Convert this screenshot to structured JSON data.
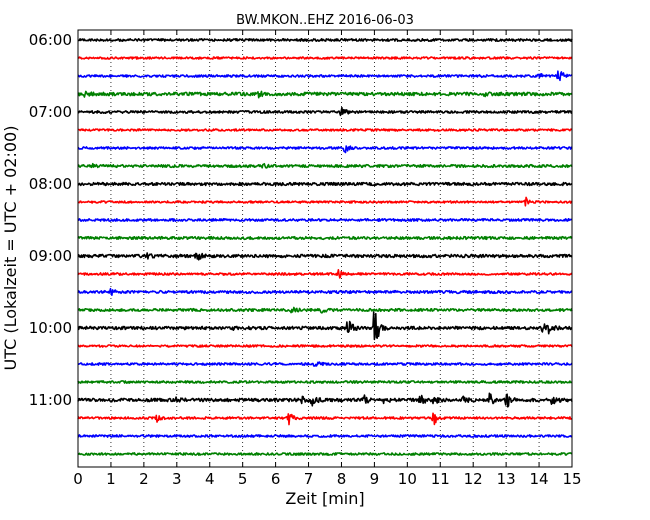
{
  "chart_data": {
    "type": "line",
    "title": "BW.MKON..EHZ 2016-06-03",
    "xlabel": "Zeit  [min]",
    "ylabel": "UTC (Lokalzeit = UTC + 02:00)",
    "xlim": [
      0,
      15
    ],
    "x_ticks": [
      "0",
      "1",
      "2",
      "3",
      "4",
      "5",
      "6",
      "7",
      "8",
      "9",
      "10",
      "11",
      "12",
      "13",
      "14",
      "15"
    ],
    "y_ticks": [
      "06:00",
      "07:00",
      "08:00",
      "09:00",
      "10:00",
      "11:00"
    ],
    "grid": "vertical dotted",
    "colors": [
      "#000000",
      "#ff0000",
      "#0000ff",
      "#008000"
    ],
    "traces": [
      {
        "label": "06:00",
        "color": "#000000",
        "noise": 1.2,
        "events": []
      },
      {
        "label": "06:15",
        "color": "#ff0000",
        "noise": 1.0,
        "events": []
      },
      {
        "label": "06:30",
        "color": "#0000ff",
        "noise": 1.1,
        "events": [
          {
            "t": 14.6,
            "amp": 8
          },
          {
            "t": 14.0,
            "amp": 2.5
          },
          {
            "t": 12.2,
            "amp": 2
          }
        ]
      },
      {
        "label": "06:45",
        "color": "#008000",
        "noise": 1.6,
        "events": [
          {
            "t": 5.5,
            "amp": 3
          },
          {
            "t": 0.2,
            "amp": 2
          },
          {
            "t": 12.3,
            "amp": 2
          }
        ]
      },
      {
        "label": "07:00",
        "color": "#000000",
        "noise": 1.2,
        "events": [
          {
            "t": 8.0,
            "amp": 5
          }
        ]
      },
      {
        "label": "07:15",
        "color": "#ff0000",
        "noise": 1.0,
        "events": []
      },
      {
        "label": "07:30",
        "color": "#0000ff",
        "noise": 1.1,
        "events": [
          {
            "t": 8.1,
            "amp": 5
          }
        ]
      },
      {
        "label": "07:45",
        "color": "#008000",
        "noise": 1.3,
        "events": [
          {
            "t": 0.4,
            "amp": 2
          },
          {
            "t": 5.6,
            "amp": 2
          }
        ]
      },
      {
        "label": "08:00",
        "color": "#000000",
        "noise": 1.4,
        "events": []
      },
      {
        "label": "08:15",
        "color": "#ff0000",
        "noise": 1.0,
        "events": [
          {
            "t": 13.6,
            "amp": 4
          }
        ]
      },
      {
        "label": "08:30",
        "color": "#0000ff",
        "noise": 1.2,
        "events": []
      },
      {
        "label": "08:45",
        "color": "#008000",
        "noise": 1.3,
        "events": []
      },
      {
        "label": "09:00",
        "color": "#000000",
        "noise": 1.5,
        "events": [
          {
            "t": 3.6,
            "amp": 5
          },
          {
            "t": 2.1,
            "amp": 2
          }
        ]
      },
      {
        "label": "09:15",
        "color": "#ff0000",
        "noise": 1.1,
        "events": [
          {
            "t": 7.9,
            "amp": 5
          }
        ]
      },
      {
        "label": "09:30",
        "color": "#0000ff",
        "noise": 1.3,
        "events": [
          {
            "t": 1.0,
            "amp": 3
          }
        ]
      },
      {
        "label": "09:45",
        "color": "#008000",
        "noise": 1.3,
        "events": [
          {
            "t": 6.5,
            "amp": 3
          },
          {
            "t": 7.4,
            "amp": 2
          }
        ]
      },
      {
        "label": "10:00",
        "color": "#000000",
        "noise": 1.5,
        "events": [
          {
            "t": 8.2,
            "amp": 11
          },
          {
            "t": 9.0,
            "amp": 26
          },
          {
            "t": 14.1,
            "amp": 5
          },
          {
            "t": 14.3,
            "amp": 4
          },
          {
            "t": 4.7,
            "amp": 2
          }
        ]
      },
      {
        "label": "10:15",
        "color": "#ff0000",
        "noise": 1.0,
        "events": []
      },
      {
        "label": "10:30",
        "color": "#0000ff",
        "noise": 1.1,
        "events": [
          {
            "t": 7.2,
            "amp": 3
          }
        ]
      },
      {
        "label": "10:45",
        "color": "#008000",
        "noise": 1.1,
        "events": []
      },
      {
        "label": "11:00",
        "color": "#000000",
        "noise": 1.6,
        "events": [
          {
            "t": 7.1,
            "amp": 6
          },
          {
            "t": 6.8,
            "amp": 3
          },
          {
            "t": 8.7,
            "amp": 4
          },
          {
            "t": 9.3,
            "amp": 3
          },
          {
            "t": 10.4,
            "amp": 6
          },
          {
            "t": 10.8,
            "amp": 5
          },
          {
            "t": 11.7,
            "amp": 4
          },
          {
            "t": 12.5,
            "amp": 7
          },
          {
            "t": 13.0,
            "amp": 9
          },
          {
            "t": 14.4,
            "amp": 6
          },
          {
            "t": 3.0,
            "amp": 2
          }
        ]
      },
      {
        "label": "11:15",
        "color": "#ff0000",
        "noise": 1.1,
        "events": [
          {
            "t": 6.4,
            "amp": 7
          },
          {
            "t": 10.8,
            "amp": 7
          },
          {
            "t": 2.4,
            "amp": 3
          }
        ]
      },
      {
        "label": "11:30",
        "color": "#0000ff",
        "noise": 1.1,
        "events": []
      },
      {
        "label": "11:45",
        "color": "#008000",
        "noise": 1.1,
        "events": []
      }
    ]
  }
}
